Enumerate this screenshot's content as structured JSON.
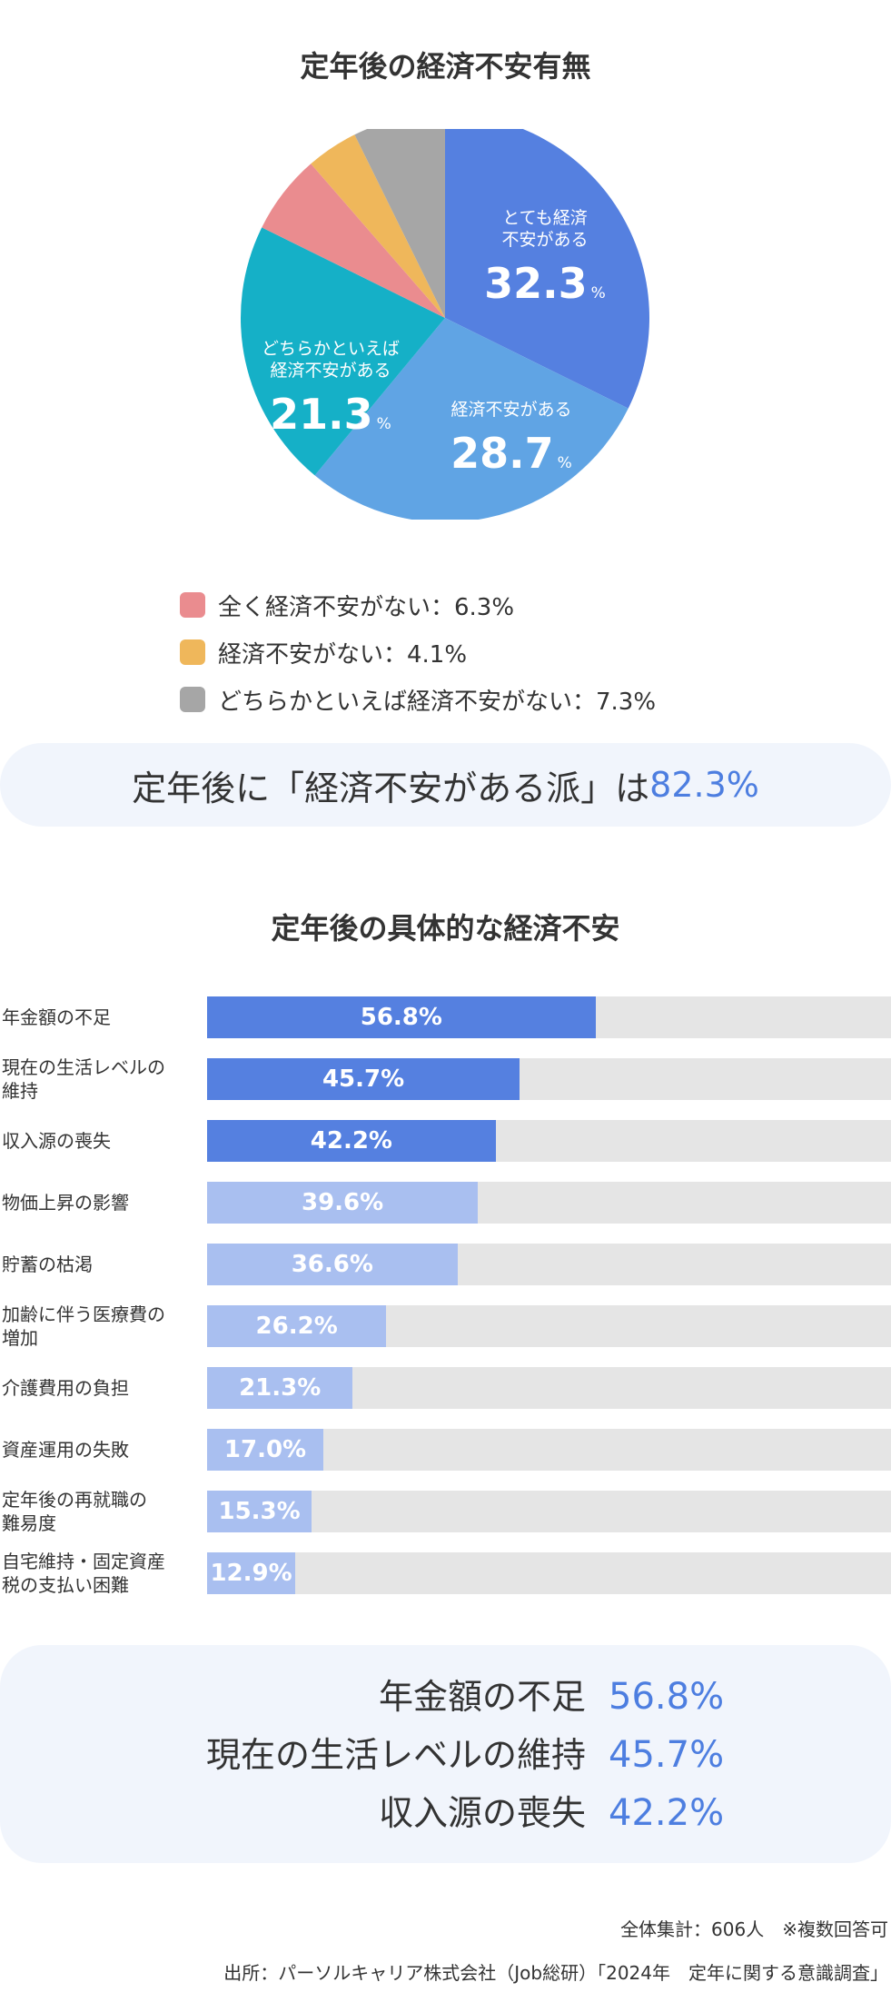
{
  "pie_title": "定年後の経済不安有無",
  "callout": {
    "prefix": "定年後に「経済不安がある派」は",
    "value": "82.3%"
  },
  "bar_title": "定年後の具体的な経済不安",
  "summary": [
    {
      "label": "年金額の不足",
      "value": "56.8%"
    },
    {
      "label": "現在の生活レベルの維持",
      "value": "45.7%"
    },
    {
      "label": "収入源の喪失",
      "value": "42.2%"
    }
  ],
  "footnote": {
    "line1": "全体集計：606人　※複数回答可",
    "line2": "出所：パーソルキャリア株式会社（Job総研）「2024年　定年に関する意識調査」"
  },
  "chart_data": [
    {
      "type": "pie",
      "title": "定年後の経済不安有無",
      "slices": [
        {
          "label": "とても経済不安がある",
          "label_lines": [
            "とても経済",
            "不安がある"
          ],
          "value": 32.3,
          "number": "32.3",
          "unit": "%",
          "color": "#5580e0",
          "in_chart": true
        },
        {
          "label": "経済不安がある",
          "label_lines": [
            "経済不安がある"
          ],
          "value": 28.7,
          "number": "28.7",
          "unit": "%",
          "color": "#60a4e4",
          "in_chart": true
        },
        {
          "label": "どちらかといえば経済不安がある",
          "label_lines": [
            "どちらかといえば",
            "経済不安がある"
          ],
          "value": 21.3,
          "number": "21.3",
          "unit": "%",
          "color": "#15b0c7",
          "in_chart": true
        },
        {
          "label": "全く経済不安がない",
          "value": 6.3,
          "legend_text": "全く経済不安がない：6.3%",
          "color": "#ea8c8f",
          "in_chart": false
        },
        {
          "label": "経済不安がない",
          "value": 4.1,
          "legend_text": "経済不安がない：4.1%",
          "color": "#efb75b",
          "in_chart": false
        },
        {
          "label": "どちらかといえば経済不安がない",
          "value": 7.3,
          "legend_text": "どちらかといえば経済不安がない：7.3%",
          "color": "#a6a6a6",
          "in_chart": false
        }
      ]
    },
    {
      "type": "bar",
      "orientation": "horizontal",
      "title": "定年後の具体的な経済不安",
      "xlim": [
        0,
        100
      ],
      "categories": [
        [
          "年金額の不足"
        ],
        [
          "現在の生活レベルの",
          "維持"
        ],
        [
          "収入源の喪失"
        ],
        [
          "物価上昇の影響"
        ],
        [
          "貯蓄の枯渇"
        ],
        [
          "加齢に伴う医療費の",
          "増加"
        ],
        [
          "介護費用の負担"
        ],
        [
          "資産運用の失敗"
        ],
        [
          "定年後の再就職の",
          "難易度"
        ],
        [
          "自宅維持・固定資産",
          "税の支払い困難"
        ]
      ],
      "values": [
        56.8,
        45.7,
        42.2,
        39.6,
        36.6,
        26.2,
        21.3,
        17.0,
        15.3,
        12.9
      ],
      "value_labels": [
        "56.8%",
        "45.7%",
        "42.2%",
        "39.6%",
        "36.6%",
        "26.2%",
        "21.3%",
        "17.0%",
        "15.3%",
        "12.9%"
      ],
      "colors": {
        "top3": "#5580e0",
        "rest": "#a9bff0",
        "track": "#e5e5e5"
      }
    }
  ]
}
